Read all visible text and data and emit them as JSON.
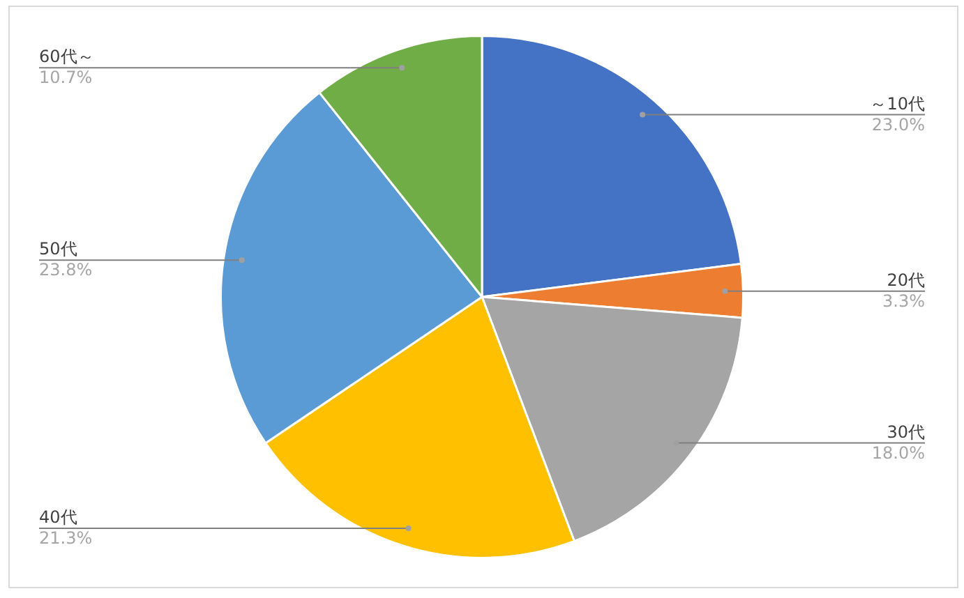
{
  "chart_data": {
    "type": "pie",
    "categories": [
      "～10代",
      "20代",
      "30代",
      "40代",
      "50代",
      "60代～"
    ],
    "values": [
      23.0,
      3.3,
      18.0,
      21.3,
      23.8,
      10.7
    ],
    "colors": [
      "#4472c4",
      "#ed7d31",
      "#a5a5a5",
      "#ffc000",
      "#5b9bd5",
      "#70ad47"
    ],
    "value_labels": [
      "23.0%",
      "3.3%",
      "18.0%",
      "21.3%",
      "23.8%",
      "10.7%"
    ],
    "legend": false
  }
}
